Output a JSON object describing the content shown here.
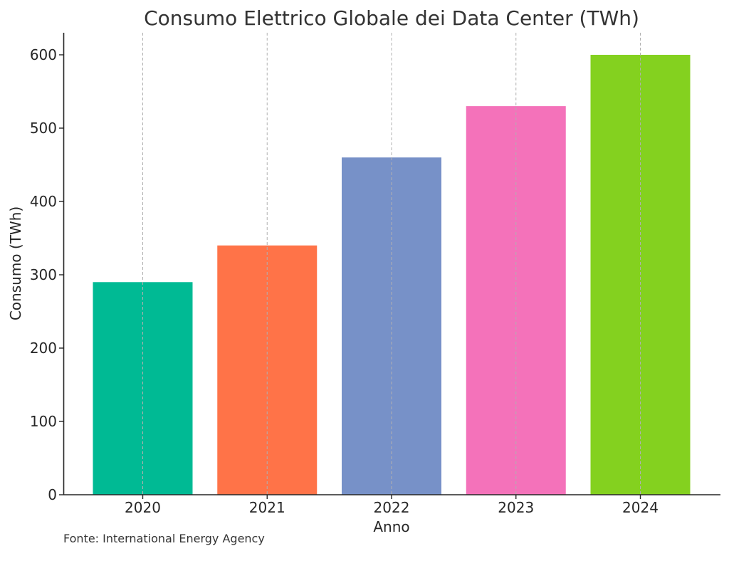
{
  "chart_data": {
    "type": "bar",
    "title": "Consumo Elettrico Globale dei Data Center (TWh)",
    "xlabel": "Anno",
    "ylabel": "Consumo (TWh)",
    "categories": [
      "2020",
      "2021",
      "2022",
      "2023",
      "2024"
    ],
    "values": [
      290,
      340,
      460,
      530,
      600
    ],
    "colors": [
      "#00BA94",
      "#FF7348",
      "#7791C8",
      "#F472BA",
      "#84D11F"
    ],
    "ylim": [
      0,
      630
    ],
    "yticks": [
      0,
      100,
      200,
      300,
      400,
      500,
      600
    ],
    "grid": "vertical dashed lines at categories",
    "legend": "none"
  },
  "source_note": "Fonte: International Energy Agency"
}
